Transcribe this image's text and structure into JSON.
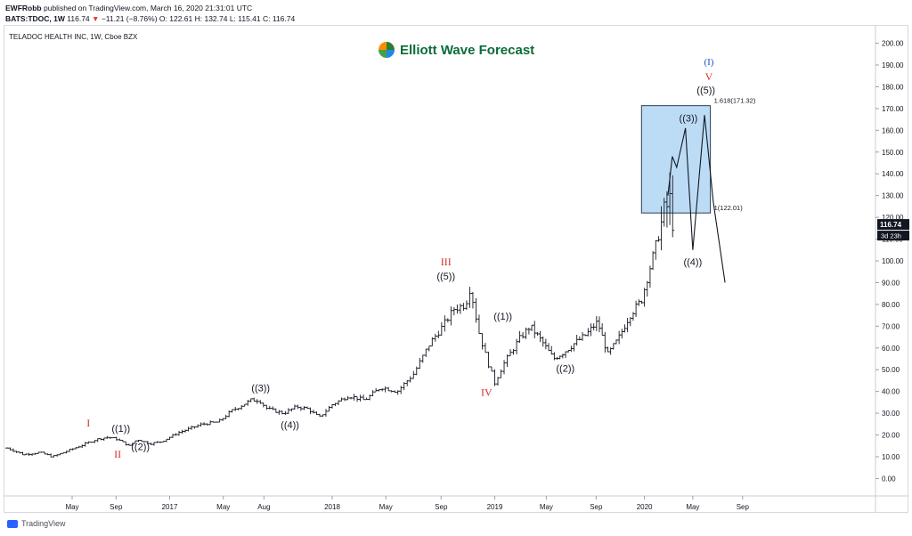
{
  "header": {
    "author": "EWFRobb",
    "published": "published on TradingView.com, March 16, 2020 21:31:01 UTC",
    "ticker": "BATS:TDOC, 1W",
    "price": "116.74",
    "change_arrow": "▼",
    "change": "−11.21 (−8.76%)",
    "ohlc": "O: 122.61 H: 132.74 L: 115.41 C: 116.74"
  },
  "legend": "TELADOC HEALTH INC, 1W, Cboe BZX",
  "logo": "Elliott Wave Forecast",
  "footer": "TradingView",
  "price_tag": {
    "value": "116.74",
    "countdown": "3d 23h"
  },
  "chart_data": {
    "type": "bar",
    "title": "TELADOC HEALTH INC, 1W, Cboe BZX",
    "xlabel": "",
    "ylabel": "",
    "ylim": [
      -8,
      208
    ],
    "y_ticks": [
      0,
      10,
      20,
      30,
      40,
      50,
      60,
      70,
      80,
      90,
      100,
      110,
      120,
      130,
      140,
      150,
      160,
      170,
      180,
      190,
      200
    ],
    "y_tick_labels": [
      "0.00",
      "10.00",
      "20.00",
      "30.00",
      "40.00",
      "50.00",
      "60.00",
      "70.00",
      "80.00",
      "90.00",
      "100.00",
      "110.00",
      "120.00",
      "130.00",
      "140.00",
      "150.00",
      "160.00",
      "170.00",
      "180.00",
      "190.00",
      "200.00"
    ],
    "x_ticks": [
      {
        "label": "May",
        "t": 0.4
      },
      {
        "label": "Sep",
        "t": 0.67
      },
      {
        "label": "2017",
        "t": 1.0
      },
      {
        "label": "May",
        "t": 1.33
      },
      {
        "label": "Aug",
        "t": 1.58
      },
      {
        "label": "2018",
        "t": 2.0
      },
      {
        "label": "May",
        "t": 2.33
      },
      {
        "label": "Sep",
        "t": 2.67
      },
      {
        "label": "2019",
        "t": 3.0
      },
      {
        "label": "May",
        "t": 3.33
      },
      {
        "label": "Sep",
        "t": 3.67
      },
      {
        "label": "2020",
        "t": 4.0
      },
      {
        "label": "May",
        "t": 4.33
      },
      {
        "label": "Sep",
        "t": 4.67
      }
    ],
    "x_range": [
      0,
      4.85
    ],
    "price_keypoints": [
      [
        0.0,
        14
      ],
      [
        0.1,
        11
      ],
      [
        0.2,
        12
      ],
      [
        0.28,
        10
      ],
      [
        0.45,
        15
      ],
      [
        0.55,
        18
      ],
      [
        0.62,
        19
      ],
      [
        0.68,
        18
      ],
      [
        0.75,
        15
      ],
      [
        0.8,
        18
      ],
      [
        0.88,
        16
      ],
      [
        0.95,
        17
      ],
      [
        1.05,
        21
      ],
      [
        1.2,
        25
      ],
      [
        1.3,
        26
      ],
      [
        1.38,
        31
      ],
      [
        1.5,
        36
      ],
      [
        1.55,
        36
      ],
      [
        1.6,
        32
      ],
      [
        1.7,
        30
      ],
      [
        1.78,
        33
      ],
      [
        1.85,
        32
      ],
      [
        1.92,
        28
      ],
      [
        2.0,
        34
      ],
      [
        2.1,
        38
      ],
      [
        2.2,
        36
      ],
      [
        2.3,
        42
      ],
      [
        2.4,
        40
      ],
      [
        2.5,
        48
      ],
      [
        2.6,
        62
      ],
      [
        2.68,
        70
      ],
      [
        2.75,
        78
      ],
      [
        2.82,
        80
      ],
      [
        2.85,
        88
      ],
      [
        2.9,
        68
      ],
      [
        2.95,
        55
      ],
      [
        3.0,
        44
      ],
      [
        3.05,
        52
      ],
      [
        3.1,
        58
      ],
      [
        3.15,
        64
      ],
      [
        3.22,
        70
      ],
      [
        3.3,
        63
      ],
      [
        3.38,
        55
      ],
      [
        3.45,
        58
      ],
      [
        3.52,
        62
      ],
      [
        3.6,
        66
      ],
      [
        3.68,
        72
      ],
      [
        3.75,
        57
      ],
      [
        3.82,
        64
      ],
      [
        3.9,
        75
      ],
      [
        3.98,
        82
      ],
      [
        4.05,
        100
      ],
      [
        4.12,
        118
      ],
      [
        4.17,
        128
      ],
      [
        4.2,
        117
      ]
    ],
    "annotations": [
      {
        "text": "I",
        "t": 0.5,
        "y": 24,
        "color": "#d32f2f"
      },
      {
        "text": "II",
        "t": 0.68,
        "y": 9.5,
        "color": "#d32f2f"
      },
      {
        "text": "((1))",
        "t": 0.7,
        "y": 21.5,
        "color": "#131722"
      },
      {
        "text": "((2))",
        "t": 0.82,
        "y": 13,
        "color": "#131722"
      },
      {
        "text": "((3))",
        "t": 1.56,
        "y": 40,
        "color": "#131722"
      },
      {
        "text": "((4))",
        "t": 1.74,
        "y": 23,
        "color": "#131722"
      },
      {
        "text": "III",
        "t": 2.7,
        "y": 98,
        "color": "#d32f2f"
      },
      {
        "text": "((5))",
        "t": 2.7,
        "y": 91.5,
        "color": "#131722"
      },
      {
        "text": "IV",
        "t": 2.95,
        "y": 38,
        "color": "#d32f2f"
      },
      {
        "text": "((1))",
        "t": 3.05,
        "y": 73,
        "color": "#131722"
      },
      {
        "text": "((2))",
        "t": 3.46,
        "y": 49,
        "color": "#131722"
      },
      {
        "text": "((3))",
        "t": 4.3,
        "y": 164,
        "color": "#131722"
      },
      {
        "text": "((4))",
        "t": 4.33,
        "y": 98,
        "color": "#131722"
      },
      {
        "text": "((5))",
        "t": 4.42,
        "y": 177,
        "color": "#131722"
      },
      {
        "text": "V",
        "t": 4.44,
        "y": 183,
        "color": "#d32f2f"
      },
      {
        "text": "(I)",
        "t": 4.44,
        "y": 190,
        "color": "#1e4fbf"
      }
    ],
    "projection_path": [
      [
        4.16,
        130
      ],
      [
        4.19,
        148
      ],
      [
        4.22,
        143
      ],
      [
        4.28,
        161
      ],
      [
        4.33,
        105
      ],
      [
        4.41,
        167
      ],
      [
        4.47,
        127
      ],
      [
        4.55,
        90
      ]
    ],
    "target_box": {
      "t_start": 3.98,
      "t_end": 4.45,
      "y_low": 122.01,
      "y_high": 171.32,
      "label_high": "1.618(171.32)",
      "label_low": "1(122.01)",
      "fill": "#bcdcf6",
      "stroke": "#2c3e50"
    },
    "grid": false,
    "bar_color": "#131722"
  }
}
